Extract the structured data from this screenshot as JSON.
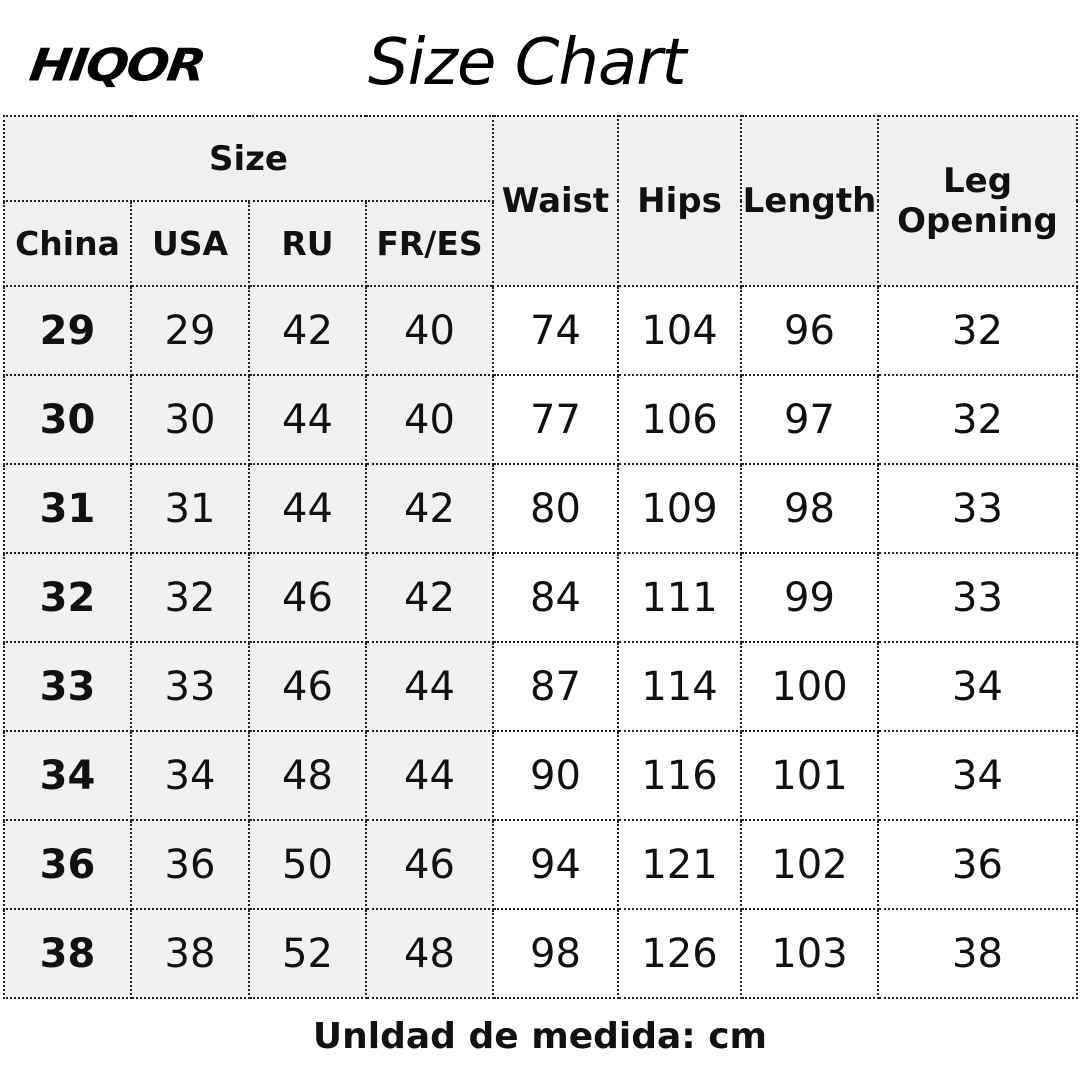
{
  "brand": "HIQOR",
  "title": "Size Chart",
  "headers": {
    "size_group": "Size",
    "china": "China",
    "usa": "USA",
    "ru": "RU",
    "fr_es": "FR/ES",
    "waist": "Waist",
    "hips": "Hips",
    "length": "Length",
    "leg_opening_1": "Leg",
    "leg_opening_2": "Opening"
  },
  "rows": [
    [
      "29",
      "29",
      "42",
      "40",
      "74",
      "104",
      "96",
      "32"
    ],
    [
      "30",
      "30",
      "44",
      "40",
      "77",
      "106",
      "97",
      "32"
    ],
    [
      "31",
      "31",
      "44",
      "42",
      "80",
      "109",
      "98",
      "33"
    ],
    [
      "32",
      "32",
      "46",
      "42",
      "84",
      "111",
      "99",
      "33"
    ],
    [
      "33",
      "33",
      "46",
      "44",
      "87",
      "114",
      "100",
      "34"
    ],
    [
      "34",
      "34",
      "48",
      "44",
      "90",
      "116",
      "101",
      "34"
    ],
    [
      "36",
      "36",
      "50",
      "46",
      "94",
      "121",
      "102",
      "36"
    ],
    [
      "38",
      "38",
      "52",
      "48",
      "98",
      "126",
      "103",
      "38"
    ]
  ],
  "footer": "Unldad de medida: cm"
}
